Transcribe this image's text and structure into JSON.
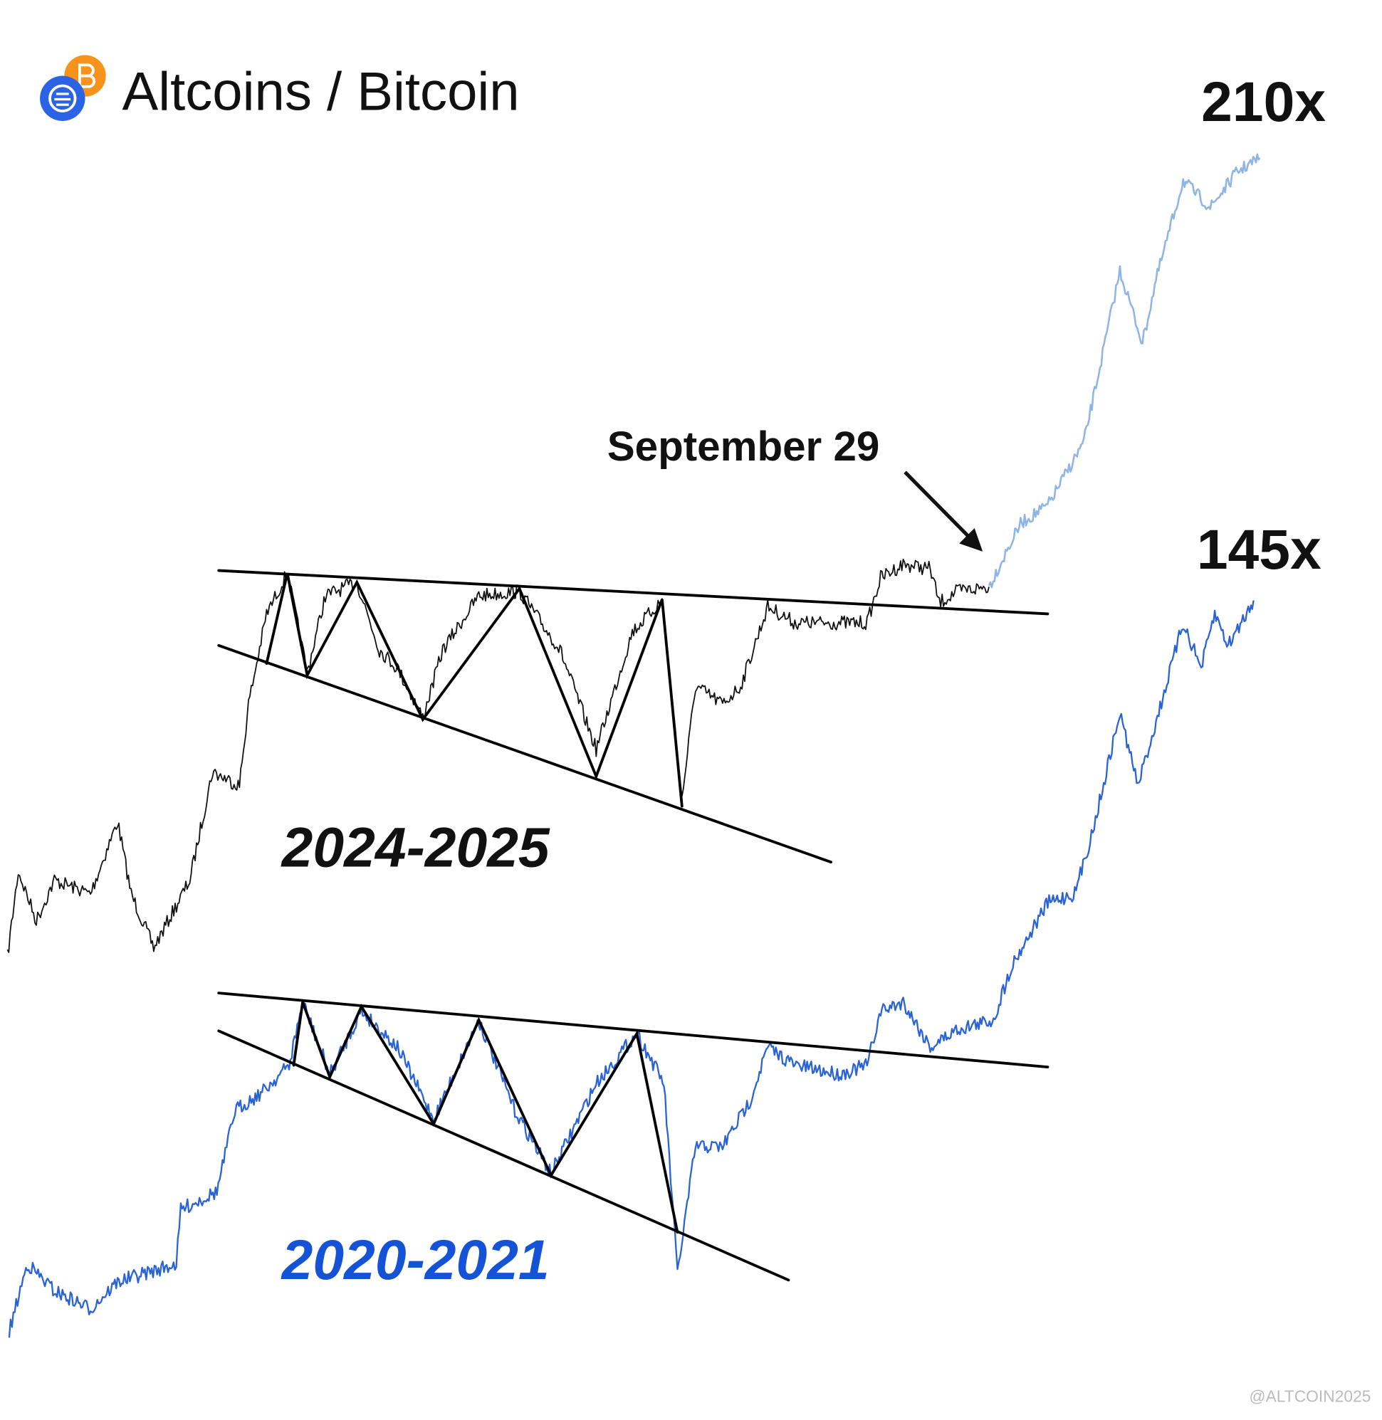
{
  "header": {
    "title": "Altcoins / Bitcoin"
  },
  "annotations": {
    "multiple_recent": "210x",
    "multiple_past": "145x",
    "date": "September 29"
  },
  "labels": {
    "period_recent": "2024-2025",
    "period_past": "2020-2021"
  },
  "watermark": "@ALTCOIN2025"
}
